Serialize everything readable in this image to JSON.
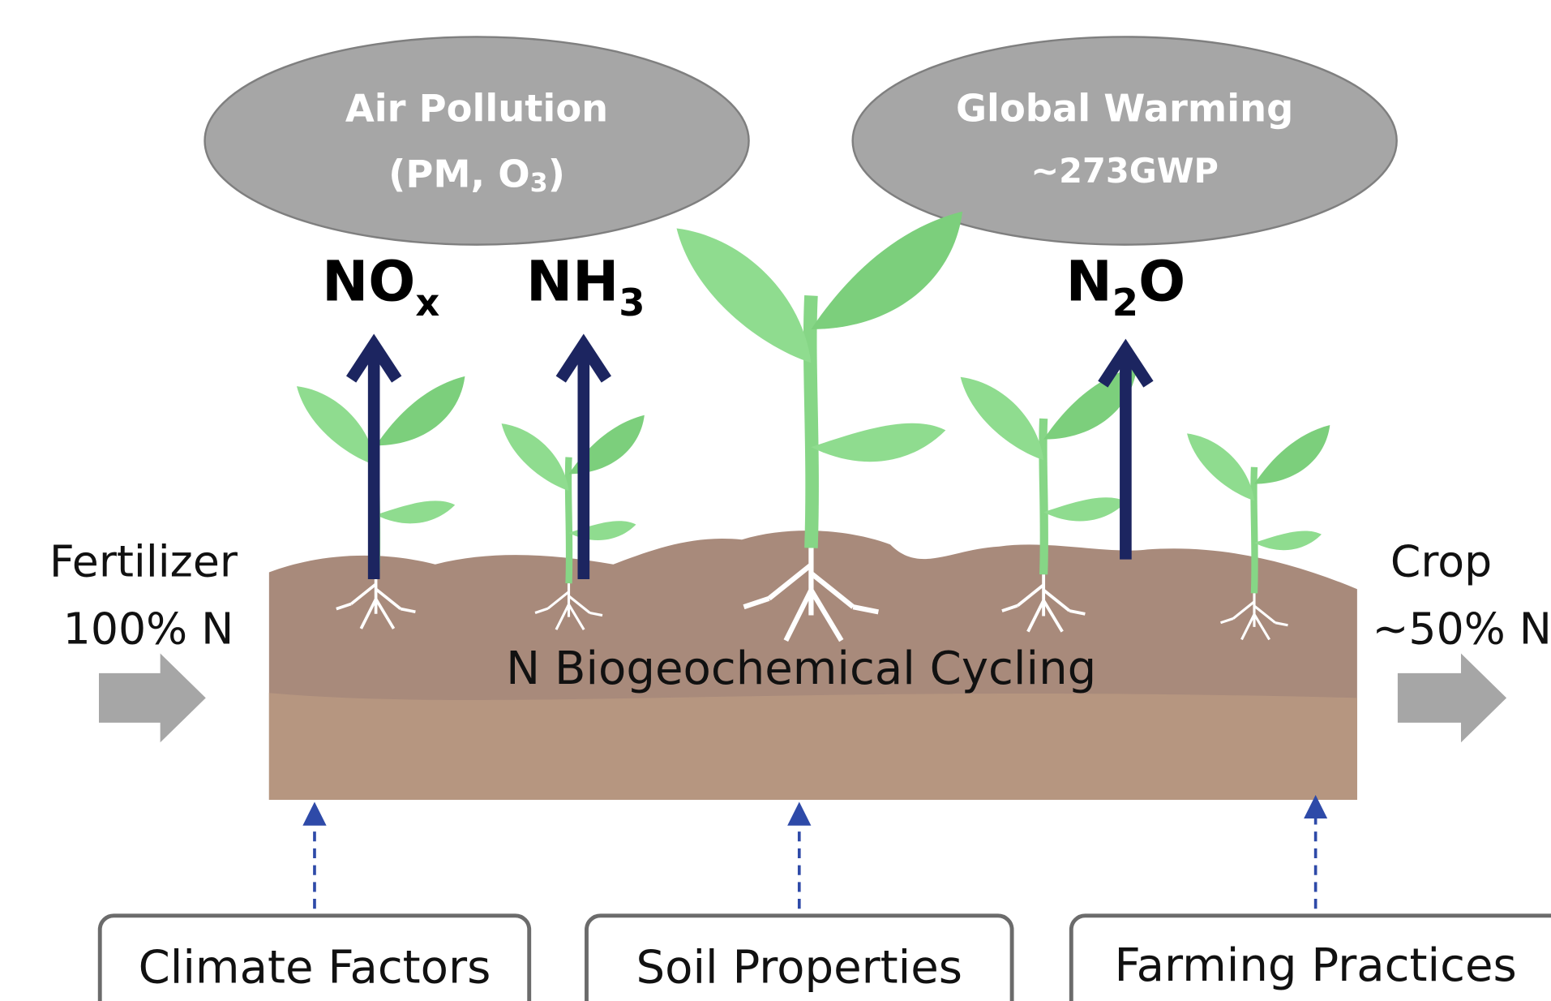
{
  "effects": [
    {
      "title": "Air Pollution",
      "detail": {
        "base": "(PM, O",
        "sub": "3",
        "tail": ")"
      }
    },
    {
      "title": "Global Warming",
      "detail": {
        "base": "~273GWP"
      }
    }
  ],
  "emissions": [
    {
      "base": "NO",
      "sub": "x"
    },
    {
      "base": "NH",
      "sub": "3"
    },
    {
      "base": "N",
      "sub": "2",
      "tail": "O"
    }
  ],
  "input": {
    "label": "Fertilizer",
    "amount": "100% N"
  },
  "output": {
    "label": "Crop",
    "amount": "~50% N"
  },
  "process": "N Biogeochemical Cycling",
  "factors": [
    "Climate Factors",
    "Soil Properties",
    "Farming Practices"
  ]
}
